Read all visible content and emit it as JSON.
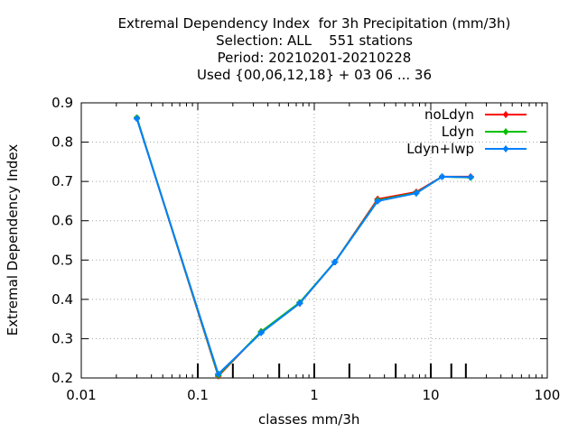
{
  "title_lines": [
    "Extremal Dependency Index  for 3h Precipitation (mm/3h)",
    "Selection: ALL    551 stations",
    "Period: 20210201-20210228",
    "Used {00,06,12,18} + 03 06 ... 36"
  ],
  "chart_data": {
    "type": "line",
    "title": "Extremal Dependency Index  for 3h Precipitation (mm/3h)",
    "xlabel": "classes mm/3h",
    "ylabel": "Extremal Dependency Index",
    "xscale": "log",
    "xlim": [
      0.01,
      100
    ],
    "ylim": [
      0.2,
      0.9
    ],
    "xticks": [
      0.01,
      0.1,
      1,
      10,
      100
    ],
    "xtick_labels": [
      "0.01",
      "0.1",
      "1",
      "10",
      "100"
    ],
    "yticks": [
      0.2,
      0.3,
      0.4,
      0.5,
      0.6,
      0.7,
      0.8,
      0.9
    ],
    "ytick_labels": [
      "0.2",
      "0.3",
      "0.4",
      "0.5",
      "0.6",
      "0.7",
      "0.8",
      "0.9"
    ],
    "class_limits": [
      0.1,
      0.2,
      0.5,
      1,
      2,
      5,
      10,
      15,
      20
    ],
    "grid": true,
    "legend_position": "top-right",
    "series": [
      {
        "name": "noLdyn",
        "color": "#ff0000",
        "x": [
          0.03,
          0.15,
          0.35,
          0.75,
          1.5,
          3.5,
          7.5,
          12.5,
          22
        ],
        "y": [
          0.862,
          0.205,
          0.318,
          0.39,
          0.495,
          0.655,
          0.673,
          0.712,
          0.712
        ]
      },
      {
        "name": "Ldyn",
        "color": "#00c000",
        "x": [
          0.03,
          0.15,
          0.35,
          0.75,
          1.5,
          3.5,
          7.5,
          12.5,
          22
        ],
        "y": [
          0.862,
          0.207,
          0.318,
          0.392,
          0.495,
          0.652,
          0.671,
          0.712,
          0.71
        ]
      },
      {
        "name": "Ldyn+lwp",
        "color": "#0080ff",
        "x": [
          0.03,
          0.15,
          0.35,
          0.75,
          1.5,
          3.5,
          7.5,
          12.5,
          22
        ],
        "y": [
          0.86,
          0.21,
          0.315,
          0.39,
          0.495,
          0.65,
          0.67,
          0.712,
          0.711
        ]
      }
    ]
  }
}
